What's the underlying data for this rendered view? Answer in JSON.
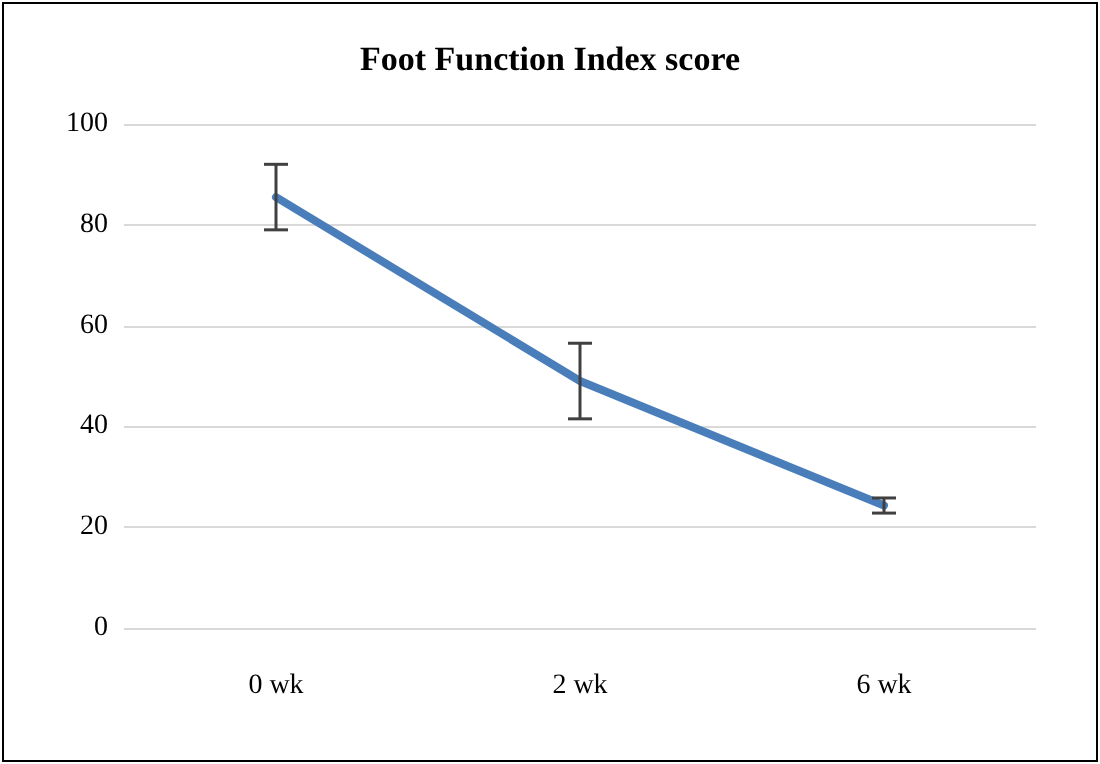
{
  "chart_data": {
    "type": "line",
    "title": "Foot Function Index score",
    "categories": [
      "0 wk",
      "2 wk",
      "6 wk"
    ],
    "series": [
      {
        "color": "#4a7ebb",
        "values": [
          85.5,
          49,
          24.3
        ],
        "errors": [
          6.5,
          7.5,
          1.5
        ]
      }
    ],
    "ylim": [
      0,
      100
    ],
    "yticks": [
      0,
      20,
      40,
      60,
      80,
      100
    ],
    "grid": "y",
    "marker": "none",
    "line_style": "solid"
  }
}
